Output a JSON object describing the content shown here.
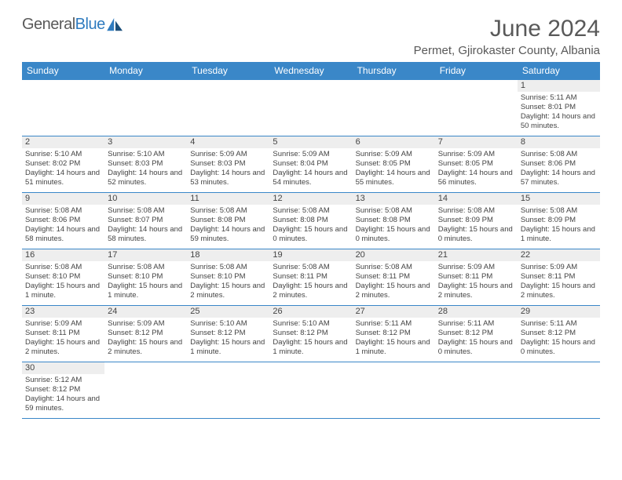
{
  "logo": {
    "text1": "General",
    "text2": "Blue"
  },
  "title": "June 2024",
  "location": "Permet, Gjirokaster County, Albania",
  "colors": {
    "header_bg": "#3a87c8",
    "header_text": "#ffffff",
    "daynum_bg": "#eeeeee",
    "text": "#444444",
    "border": "#3a87c8",
    "logo_gray": "#595959",
    "logo_blue": "#2f7bbf"
  },
  "weekdays": [
    "Sunday",
    "Monday",
    "Tuesday",
    "Wednesday",
    "Thursday",
    "Friday",
    "Saturday"
  ],
  "weeks": [
    [
      null,
      null,
      null,
      null,
      null,
      null,
      {
        "n": "1",
        "sr": "Sunrise: 5:11 AM",
        "ss": "Sunset: 8:01 PM",
        "dl": "Daylight: 14 hours and 50 minutes."
      }
    ],
    [
      {
        "n": "2",
        "sr": "Sunrise: 5:10 AM",
        "ss": "Sunset: 8:02 PM",
        "dl": "Daylight: 14 hours and 51 minutes."
      },
      {
        "n": "3",
        "sr": "Sunrise: 5:10 AM",
        "ss": "Sunset: 8:03 PM",
        "dl": "Daylight: 14 hours and 52 minutes."
      },
      {
        "n": "4",
        "sr": "Sunrise: 5:09 AM",
        "ss": "Sunset: 8:03 PM",
        "dl": "Daylight: 14 hours and 53 minutes."
      },
      {
        "n": "5",
        "sr": "Sunrise: 5:09 AM",
        "ss": "Sunset: 8:04 PM",
        "dl": "Daylight: 14 hours and 54 minutes."
      },
      {
        "n": "6",
        "sr": "Sunrise: 5:09 AM",
        "ss": "Sunset: 8:05 PM",
        "dl": "Daylight: 14 hours and 55 minutes."
      },
      {
        "n": "7",
        "sr": "Sunrise: 5:09 AM",
        "ss": "Sunset: 8:05 PM",
        "dl": "Daylight: 14 hours and 56 minutes."
      },
      {
        "n": "8",
        "sr": "Sunrise: 5:08 AM",
        "ss": "Sunset: 8:06 PM",
        "dl": "Daylight: 14 hours and 57 minutes."
      }
    ],
    [
      {
        "n": "9",
        "sr": "Sunrise: 5:08 AM",
        "ss": "Sunset: 8:06 PM",
        "dl": "Daylight: 14 hours and 58 minutes."
      },
      {
        "n": "10",
        "sr": "Sunrise: 5:08 AM",
        "ss": "Sunset: 8:07 PM",
        "dl": "Daylight: 14 hours and 58 minutes."
      },
      {
        "n": "11",
        "sr": "Sunrise: 5:08 AM",
        "ss": "Sunset: 8:08 PM",
        "dl": "Daylight: 14 hours and 59 minutes."
      },
      {
        "n": "12",
        "sr": "Sunrise: 5:08 AM",
        "ss": "Sunset: 8:08 PM",
        "dl": "Daylight: 15 hours and 0 minutes."
      },
      {
        "n": "13",
        "sr": "Sunrise: 5:08 AM",
        "ss": "Sunset: 8:08 PM",
        "dl": "Daylight: 15 hours and 0 minutes."
      },
      {
        "n": "14",
        "sr": "Sunrise: 5:08 AM",
        "ss": "Sunset: 8:09 PM",
        "dl": "Daylight: 15 hours and 0 minutes."
      },
      {
        "n": "15",
        "sr": "Sunrise: 5:08 AM",
        "ss": "Sunset: 8:09 PM",
        "dl": "Daylight: 15 hours and 1 minute."
      }
    ],
    [
      {
        "n": "16",
        "sr": "Sunrise: 5:08 AM",
        "ss": "Sunset: 8:10 PM",
        "dl": "Daylight: 15 hours and 1 minute."
      },
      {
        "n": "17",
        "sr": "Sunrise: 5:08 AM",
        "ss": "Sunset: 8:10 PM",
        "dl": "Daylight: 15 hours and 1 minute."
      },
      {
        "n": "18",
        "sr": "Sunrise: 5:08 AM",
        "ss": "Sunset: 8:10 PM",
        "dl": "Daylight: 15 hours and 2 minutes."
      },
      {
        "n": "19",
        "sr": "Sunrise: 5:08 AM",
        "ss": "Sunset: 8:11 PM",
        "dl": "Daylight: 15 hours and 2 minutes."
      },
      {
        "n": "20",
        "sr": "Sunrise: 5:08 AM",
        "ss": "Sunset: 8:11 PM",
        "dl": "Daylight: 15 hours and 2 minutes."
      },
      {
        "n": "21",
        "sr": "Sunrise: 5:09 AM",
        "ss": "Sunset: 8:11 PM",
        "dl": "Daylight: 15 hours and 2 minutes."
      },
      {
        "n": "22",
        "sr": "Sunrise: 5:09 AM",
        "ss": "Sunset: 8:11 PM",
        "dl": "Daylight: 15 hours and 2 minutes."
      }
    ],
    [
      {
        "n": "23",
        "sr": "Sunrise: 5:09 AM",
        "ss": "Sunset: 8:11 PM",
        "dl": "Daylight: 15 hours and 2 minutes."
      },
      {
        "n": "24",
        "sr": "Sunrise: 5:09 AM",
        "ss": "Sunset: 8:12 PM",
        "dl": "Daylight: 15 hours and 2 minutes."
      },
      {
        "n": "25",
        "sr": "Sunrise: 5:10 AM",
        "ss": "Sunset: 8:12 PM",
        "dl": "Daylight: 15 hours and 1 minute."
      },
      {
        "n": "26",
        "sr": "Sunrise: 5:10 AM",
        "ss": "Sunset: 8:12 PM",
        "dl": "Daylight: 15 hours and 1 minute."
      },
      {
        "n": "27",
        "sr": "Sunrise: 5:11 AM",
        "ss": "Sunset: 8:12 PM",
        "dl": "Daylight: 15 hours and 1 minute."
      },
      {
        "n": "28",
        "sr": "Sunrise: 5:11 AM",
        "ss": "Sunset: 8:12 PM",
        "dl": "Daylight: 15 hours and 0 minutes."
      },
      {
        "n": "29",
        "sr": "Sunrise: 5:11 AM",
        "ss": "Sunset: 8:12 PM",
        "dl": "Daylight: 15 hours and 0 minutes."
      }
    ],
    [
      {
        "n": "30",
        "sr": "Sunrise: 5:12 AM",
        "ss": "Sunset: 8:12 PM",
        "dl": "Daylight: 14 hours and 59 minutes."
      },
      null,
      null,
      null,
      null,
      null,
      null
    ]
  ]
}
